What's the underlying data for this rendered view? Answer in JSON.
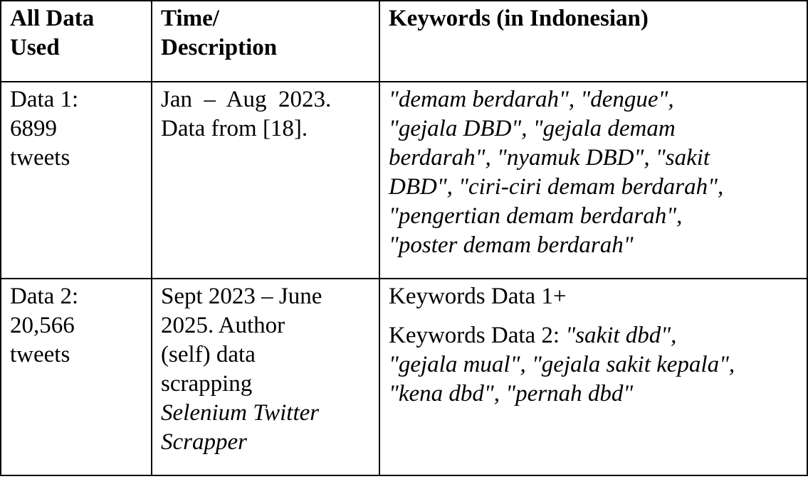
{
  "table": {
    "headers": [
      [
        "All Data",
        "Used"
      ],
      [
        "Time/",
        "Description"
      ],
      [
        "Keywords (in Indonesian)"
      ]
    ],
    "rows": [
      {
        "data_lines": [
          "Data 1:",
          "6899",
          "tweets"
        ],
        "time_lines": [
          "Jan  –  Aug  2023.",
          "Data from [18]."
        ],
        "keyword_lines": [
          "\"demam berdarah\", \"dengue\",",
          "\"gejala DBD\", \"gejala demam",
          "berdarah\", \"nyamuk DBD\", \"sakit",
          "DBD\", \"ciri-ciri demam berdarah\",",
          "\"pengertian demam berdarah\",",
          "\"poster demam berdarah\""
        ]
      },
      {
        "data_lines": [
          "Data 2:",
          "20,566",
          "tweets"
        ],
        "time_lines": [
          "Sept 2023 – June",
          "2025. Author",
          "(self) data",
          "scrapping"
        ],
        "time_italic_lines": [
          "Selenium Twitter",
          "Scrapper"
        ],
        "keyword_intro": "Keywords Data 1+",
        "keyword_label": "Keywords Data 2: ",
        "keyword_first_italic": "\"sakit dbd\",",
        "keyword_lines": [
          "\"gejala mual\", \"gejala sakit kepala\",",
          "\"kena dbd\", \"pernah dbd\""
        ]
      }
    ]
  }
}
